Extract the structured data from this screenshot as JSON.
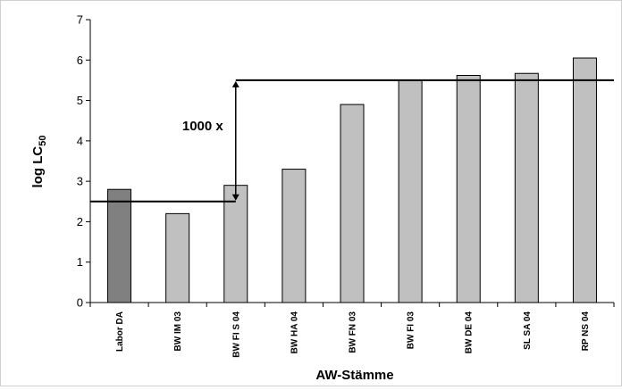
{
  "chart_data": {
    "type": "bar",
    "categories": [
      "Labor DA",
      "BW IM 03",
      "BW FI S 04",
      "BW HA 04",
      "BW FN 03",
      "BW FI 03",
      "BW DE 04",
      "SL SA 04",
      "RP NS 04"
    ],
    "values": [
      2.8,
      2.2,
      2.9,
      3.3,
      4.9,
      5.5,
      5.62,
      5.67,
      6.05
    ],
    "highlight_index": 0,
    "colors": {
      "highlight": "#808080",
      "bar": "#c0c0c0",
      "line": "#000000"
    },
    "xlabel": "AW-Stämme",
    "ylabel_main": "log LC",
    "ylabel_sub": "50",
    "ylim": [
      0,
      7
    ],
    "yticks": [
      0,
      1,
      2,
      3,
      4,
      5,
      6,
      7
    ],
    "grid": false,
    "legend": "none",
    "reference_lines": [
      {
        "y": 2.5,
        "x_start_category": 0,
        "x_end_category": 2
      },
      {
        "y": 5.5,
        "x_start_category": 2,
        "x_end_category": 8
      }
    ],
    "annotation": {
      "text": "1000 x",
      "from_y": 2.5,
      "to_y": 5.5
    }
  }
}
